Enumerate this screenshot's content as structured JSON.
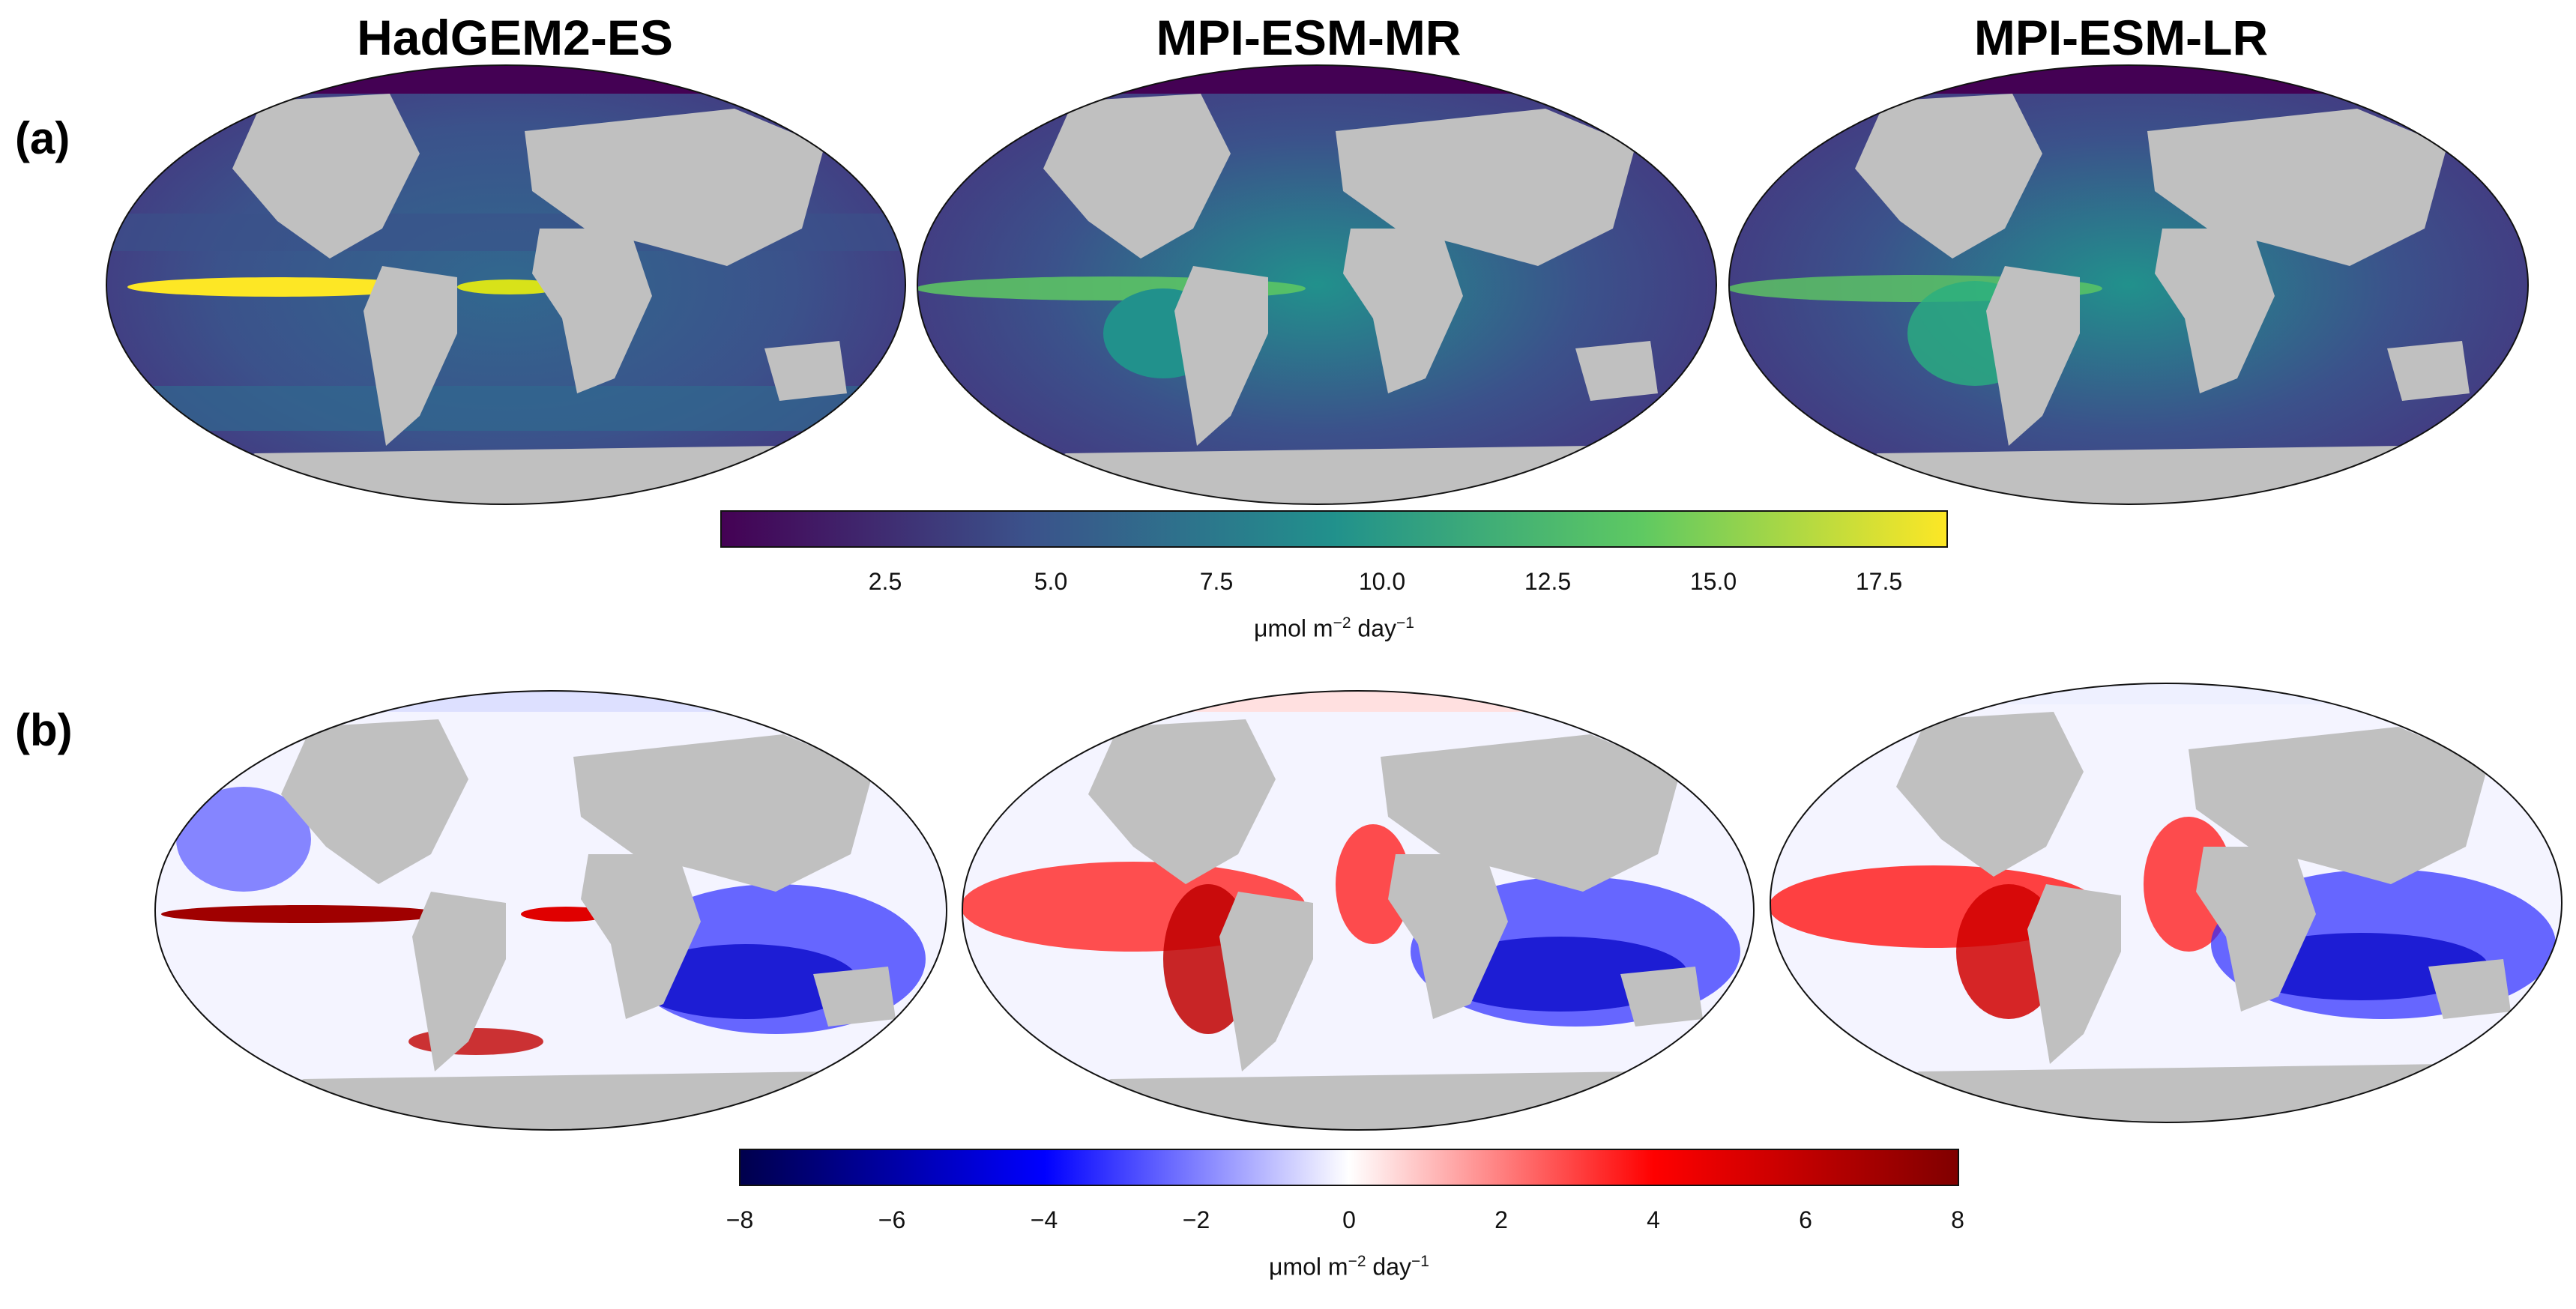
{
  "row_a": {
    "label": "(a)",
    "titles": [
      "HadGEM2-ES",
      "MPI-ESM-MR",
      "MPI-ESM-LR"
    ],
    "colorbar": {
      "colormap": "viridis",
      "colors": [
        "#440154",
        "#3b528b",
        "#21918c",
        "#5ec962",
        "#fde725"
      ],
      "range": [
        0,
        18.5
      ],
      "ticks": [
        "2.5",
        "5.0",
        "7.5",
        "10.0",
        "12.5",
        "15.0",
        "17.5"
      ],
      "unit_main": "μmol m",
      "unit_exp1": "−2",
      "unit_mid": " day",
      "unit_exp2": "−1"
    }
  },
  "row_b": {
    "label": "(b)",
    "colorbar": {
      "colormap": "seismic",
      "colors": [
        "#00004c",
        "#0000ff",
        "#ffffff",
        "#ff0000",
        "#800000"
      ],
      "range": [
        -8,
        8
      ],
      "ticks": [
        "−8",
        "−6",
        "−4",
        "−2",
        "0",
        "2",
        "4",
        "6",
        "8"
      ],
      "unit_main": "μmol m",
      "unit_exp1": "−2",
      "unit_mid": " day",
      "unit_exp2": "−1"
    }
  }
}
